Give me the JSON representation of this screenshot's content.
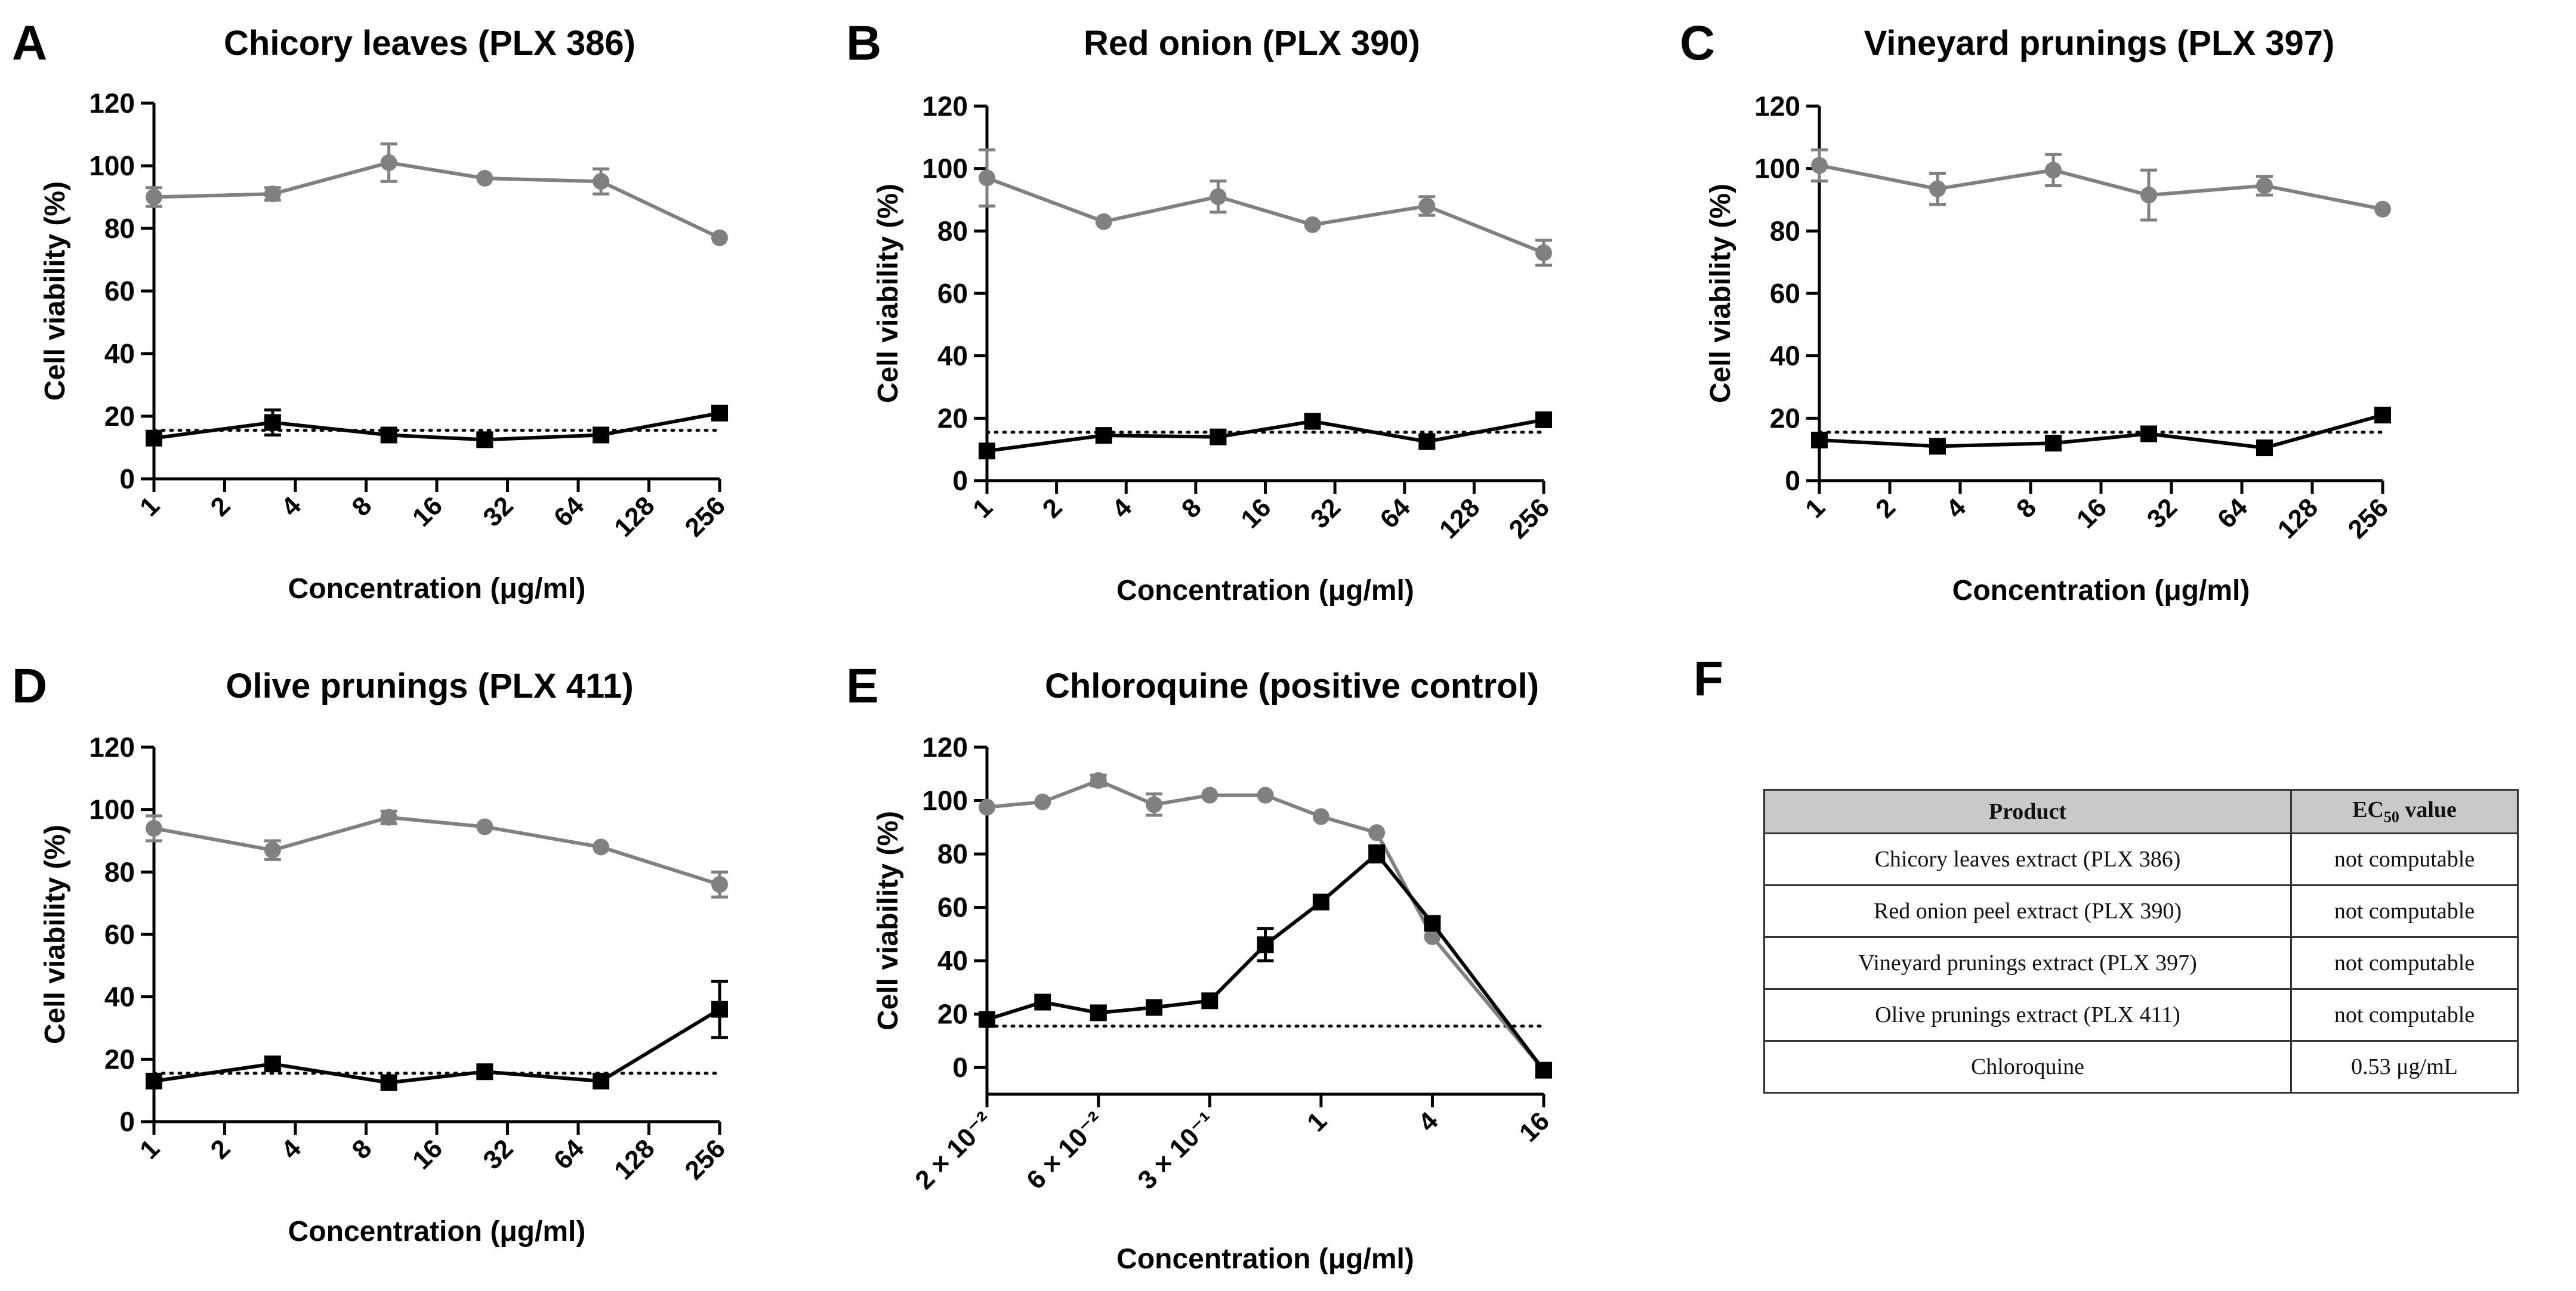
{
  "chart_data": [
    {
      "type": "line",
      "panel_letter": "A",
      "title": "Chicory leaves (PLX 386)",
      "xlabel": "Concentration (μg/ml)",
      "ylabel": "Cell viability (%)",
      "xscale": "log2",
      "xticks": [
        1,
        2,
        4,
        8,
        16,
        32,
        64,
        128,
        256
      ],
      "xtick_labels": [
        "1",
        "2",
        "4",
        "8",
        "16",
        "32",
        "64",
        "128",
        "256"
      ],
      "ylim": [
        0,
        120
      ],
      "yticks": [
        0,
        20,
        40,
        60,
        80,
        100,
        120
      ],
      "threshold": 15.5,
      "series": [
        {
          "name": "gray-circles",
          "color": "#808080",
          "marker": "circle",
          "x": [
            1,
            3.2,
            10,
            25.6,
            80,
            256
          ],
          "y": [
            90,
            91,
            101,
            96,
            95,
            77
          ],
          "err": [
            3,
            2,
            6,
            0,
            4,
            0
          ]
        },
        {
          "name": "black-squares",
          "color": "#000000",
          "marker": "square",
          "x": [
            1,
            3.2,
            10,
            25.6,
            80,
            256
          ],
          "y": [
            13,
            18,
            14,
            12.5,
            14,
            21
          ],
          "err": [
            0,
            4,
            0,
            2,
            0,
            2
          ]
        }
      ]
    },
    {
      "type": "line",
      "panel_letter": "B",
      "title": "Red onion (PLX 390)",
      "xlabel": "Concentration (μg/ml)",
      "ylabel": "Cell viability (%)",
      "xscale": "log2",
      "xticks": [
        1,
        2,
        4,
        8,
        16,
        32,
        64,
        128,
        256
      ],
      "xtick_labels": [
        "1",
        "2",
        "4",
        "8",
        "16",
        "32",
        "64",
        "128",
        "256"
      ],
      "ylim": [
        0,
        120
      ],
      "yticks": [
        0,
        20,
        40,
        60,
        80,
        100,
        120
      ],
      "threshold": 15.5,
      "series": [
        {
          "name": "gray-circles",
          "color": "#808080",
          "marker": "circle",
          "x": [
            1,
            3.2,
            10,
            25.6,
            80,
            256
          ],
          "y": [
            97,
            83,
            91,
            82,
            88,
            73
          ],
          "err": [
            9,
            0,
            5,
            0,
            3,
            4
          ]
        },
        {
          "name": "black-squares",
          "color": "#000000",
          "marker": "square",
          "x": [
            1,
            3.2,
            10,
            25.6,
            80,
            256
          ],
          "y": [
            9.5,
            14.5,
            14,
            19,
            12.5,
            19.5
          ],
          "err": [
            0,
            0,
            2,
            0,
            2,
            0
          ]
        }
      ]
    },
    {
      "type": "line",
      "panel_letter": "C",
      "title": "Vineyard prunings (PLX 397)",
      "xlabel": "Concentration (μg/ml)",
      "ylabel": "Cell viability (%)",
      "xscale": "log2",
      "xticks": [
        1,
        2,
        4,
        8,
        16,
        32,
        64,
        128,
        256
      ],
      "xtick_labels": [
        "1",
        "2",
        "4",
        "8",
        "16",
        "32",
        "64",
        "128",
        "256"
      ],
      "ylim": [
        0,
        120
      ],
      "yticks": [
        0,
        20,
        40,
        60,
        80,
        100,
        120
      ],
      "threshold": 15.5,
      "series": [
        {
          "name": "gray-circles",
          "color": "#808080",
          "marker": "circle",
          "x": [
            1,
            3.2,
            10,
            25.6,
            80,
            256
          ],
          "y": [
            101,
            93.5,
            99.5,
            91.5,
            94.5,
            87
          ],
          "err": [
            5,
            5,
            5,
            8,
            3,
            0
          ]
        },
        {
          "name": "black-squares",
          "color": "#000000",
          "marker": "square",
          "x": [
            1,
            3.2,
            10,
            25.6,
            80,
            256
          ],
          "y": [
            13,
            11,
            12,
            15,
            10.5,
            21
          ],
          "err": [
            2,
            0,
            2,
            0,
            0,
            2
          ]
        }
      ]
    },
    {
      "type": "line",
      "panel_letter": "D",
      "title": "Olive prunings (PLX 411)",
      "xlabel": "Concentration (μg/ml)",
      "ylabel": "Cell viability (%)",
      "xscale": "log2",
      "xticks": [
        1,
        2,
        4,
        8,
        16,
        32,
        64,
        128,
        256
      ],
      "xtick_labels": [
        "1",
        "2",
        "4",
        "8",
        "16",
        "32",
        "64",
        "128",
        "256"
      ],
      "ylim": [
        0,
        120
      ],
      "yticks": [
        0,
        20,
        40,
        60,
        80,
        100,
        120
      ],
      "threshold": 15.5,
      "series": [
        {
          "name": "gray-circles",
          "color": "#808080",
          "marker": "circle",
          "x": [
            1,
            3.2,
            10,
            25.6,
            80,
            256
          ],
          "y": [
            94,
            87,
            97.5,
            94.5,
            88,
            76
          ],
          "err": [
            4,
            3,
            2,
            0,
            0,
            4
          ]
        },
        {
          "name": "black-squares",
          "color": "#000000",
          "marker": "square",
          "x": [
            1,
            3.2,
            10,
            25.6,
            80,
            256
          ],
          "y": [
            13,
            18.5,
            12.5,
            16,
            13,
            36
          ],
          "err": [
            0,
            0,
            0,
            0,
            0,
            9
          ]
        }
      ]
    },
    {
      "type": "line",
      "panel_letter": "E",
      "title": "Chloroquine (positive control)",
      "xlabel": "Concentration (μg/ml)",
      "ylabel": "Cell viability (%)",
      "xscale": "log10",
      "xlim": [
        0.0156,
        16
      ],
      "xticks": [
        0.0156,
        0.0625,
        0.25,
        1,
        4,
        16
      ],
      "xtick_labels": [
        "2 × 10⁻²",
        "6 × 10⁻²",
        "3 × 10⁻¹",
        "1",
        "4",
        "16"
      ],
      "ylim": [
        -10,
        120
      ],
      "yticks": [
        0,
        20,
        40,
        60,
        80,
        100,
        120
      ],
      "threshold": 15.5,
      "series": [
        {
          "name": "gray-circles",
          "color": "#808080",
          "marker": "circle",
          "x": [
            0.0156,
            0.0312,
            0.0625,
            0.125,
            0.25,
            0.5,
            1,
            2,
            4,
            16
          ],
          "y": [
            97.5,
            99.5,
            107.5,
            98.5,
            102,
            102,
            94,
            88,
            49,
            -1
          ],
          "err": [
            0,
            0,
            2,
            4,
            0,
            0,
            0,
            0,
            0,
            0
          ]
        },
        {
          "name": "black-squares",
          "color": "#000000",
          "marker": "square",
          "x": [
            0.0156,
            0.0312,
            0.0625,
            0.125,
            0.25,
            0.5,
            1,
            2,
            4,
            16
          ],
          "y": [
            18,
            24.5,
            20.5,
            22.5,
            25,
            46,
            62,
            80,
            54,
            -1
          ],
          "err": [
            0,
            0,
            2,
            0,
            0,
            6,
            0,
            3,
            0,
            0
          ]
        }
      ]
    }
  ],
  "table": {
    "panel_letter": "F",
    "header": {
      "product": "Product",
      "ec50_prefix": "EC",
      "ec50_sub": "50",
      "ec50_suffix": " value"
    },
    "rows": [
      {
        "product": "Chicory leaves extract (PLX 386)",
        "value": "not computable"
      },
      {
        "product": "Red onion peel extract (PLX 390)",
        "value": "not computable"
      },
      {
        "product": "Vineyard prunings extract (PLX 397)",
        "value": "not computable"
      },
      {
        "product": "Olive prunings extract (PLX 411)",
        "value": "not computable"
      },
      {
        "product": "Chloroquine",
        "value": "0.53 μg/mL"
      }
    ]
  }
}
